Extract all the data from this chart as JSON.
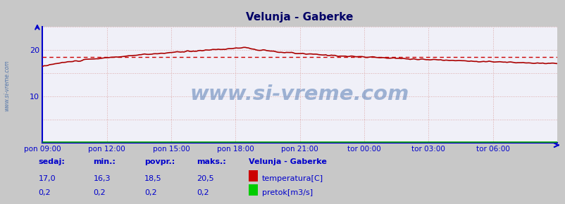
{
  "title": "Velunja - Gaberke",
  "bg_color": "#c8c8c8",
  "plot_bg_color": "#f0f0f8",
  "grid_color": "#ddaaaa",
  "axis_color": "#0000cc",
  "temp_line_color": "#aa0000",
  "flow_line_color": "#00aa00",
  "text_color": "#0000cc",
  "title_color": "#000066",
  "side_label": "www.si-vreme.com",
  "watermark": "www.si-vreme.com",
  "x_labels": [
    "pon 09:00",
    "pon 12:00",
    "pon 15:00",
    "pon 18:00",
    "pon 21:00",
    "tor 00:00",
    "tor 03:00",
    "tor 06:00"
  ],
  "ylim": [
    0,
    25
  ],
  "yticks": [
    10,
    20
  ],
  "avg_line_y": 18.5,
  "avg_line_color": "#cc0000",
  "sedaj": 17.0,
  "min_val": 16.3,
  "povpr_val": 18.5,
  "maks_val": 20.5,
  "sedaj2": 0.2,
  "min2": 0.2,
  "povpr2": 0.2,
  "maks2": 0.2,
  "legend_title": "Velunja - Gaberke",
  "legend_items": [
    "temperatura[C]",
    "pretok[m3/s]"
  ],
  "legend_colors": [
    "#cc0000",
    "#00cc00"
  ],
  "n_points": 288
}
